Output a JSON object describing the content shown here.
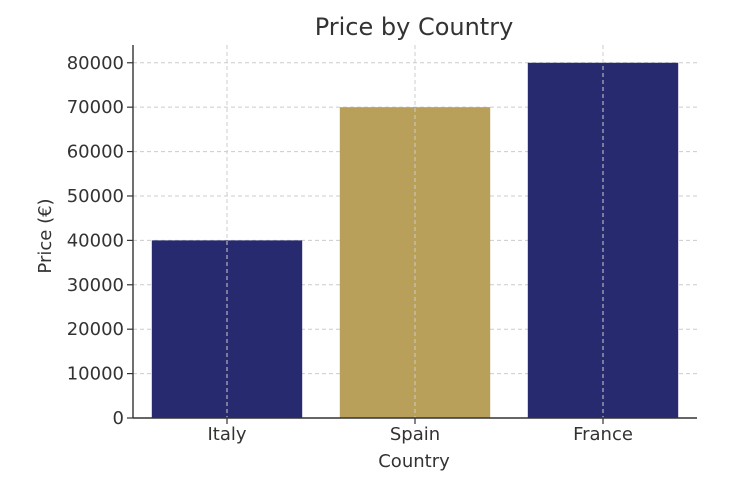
{
  "chart_data": {
    "type": "bar",
    "title": "Price by Country",
    "xlabel": "Country",
    "ylabel": "Price (€)",
    "categories": [
      "Italy",
      "Spain",
      "France"
    ],
    "values": [
      40000,
      70000,
      80000
    ],
    "bar_colors": [
      "#272a6e",
      "#b9a05a",
      "#272a6e"
    ],
    "ylim": [
      0,
      84000
    ],
    "yticks": [
      0,
      10000,
      20000,
      30000,
      40000,
      50000,
      60000,
      70000,
      80000
    ],
    "ytick_labels": [
      "0",
      "10000",
      "20000",
      "30000",
      "40000",
      "50000",
      "60000",
      "70000",
      "80000"
    ],
    "grid": true,
    "legend": "none"
  }
}
